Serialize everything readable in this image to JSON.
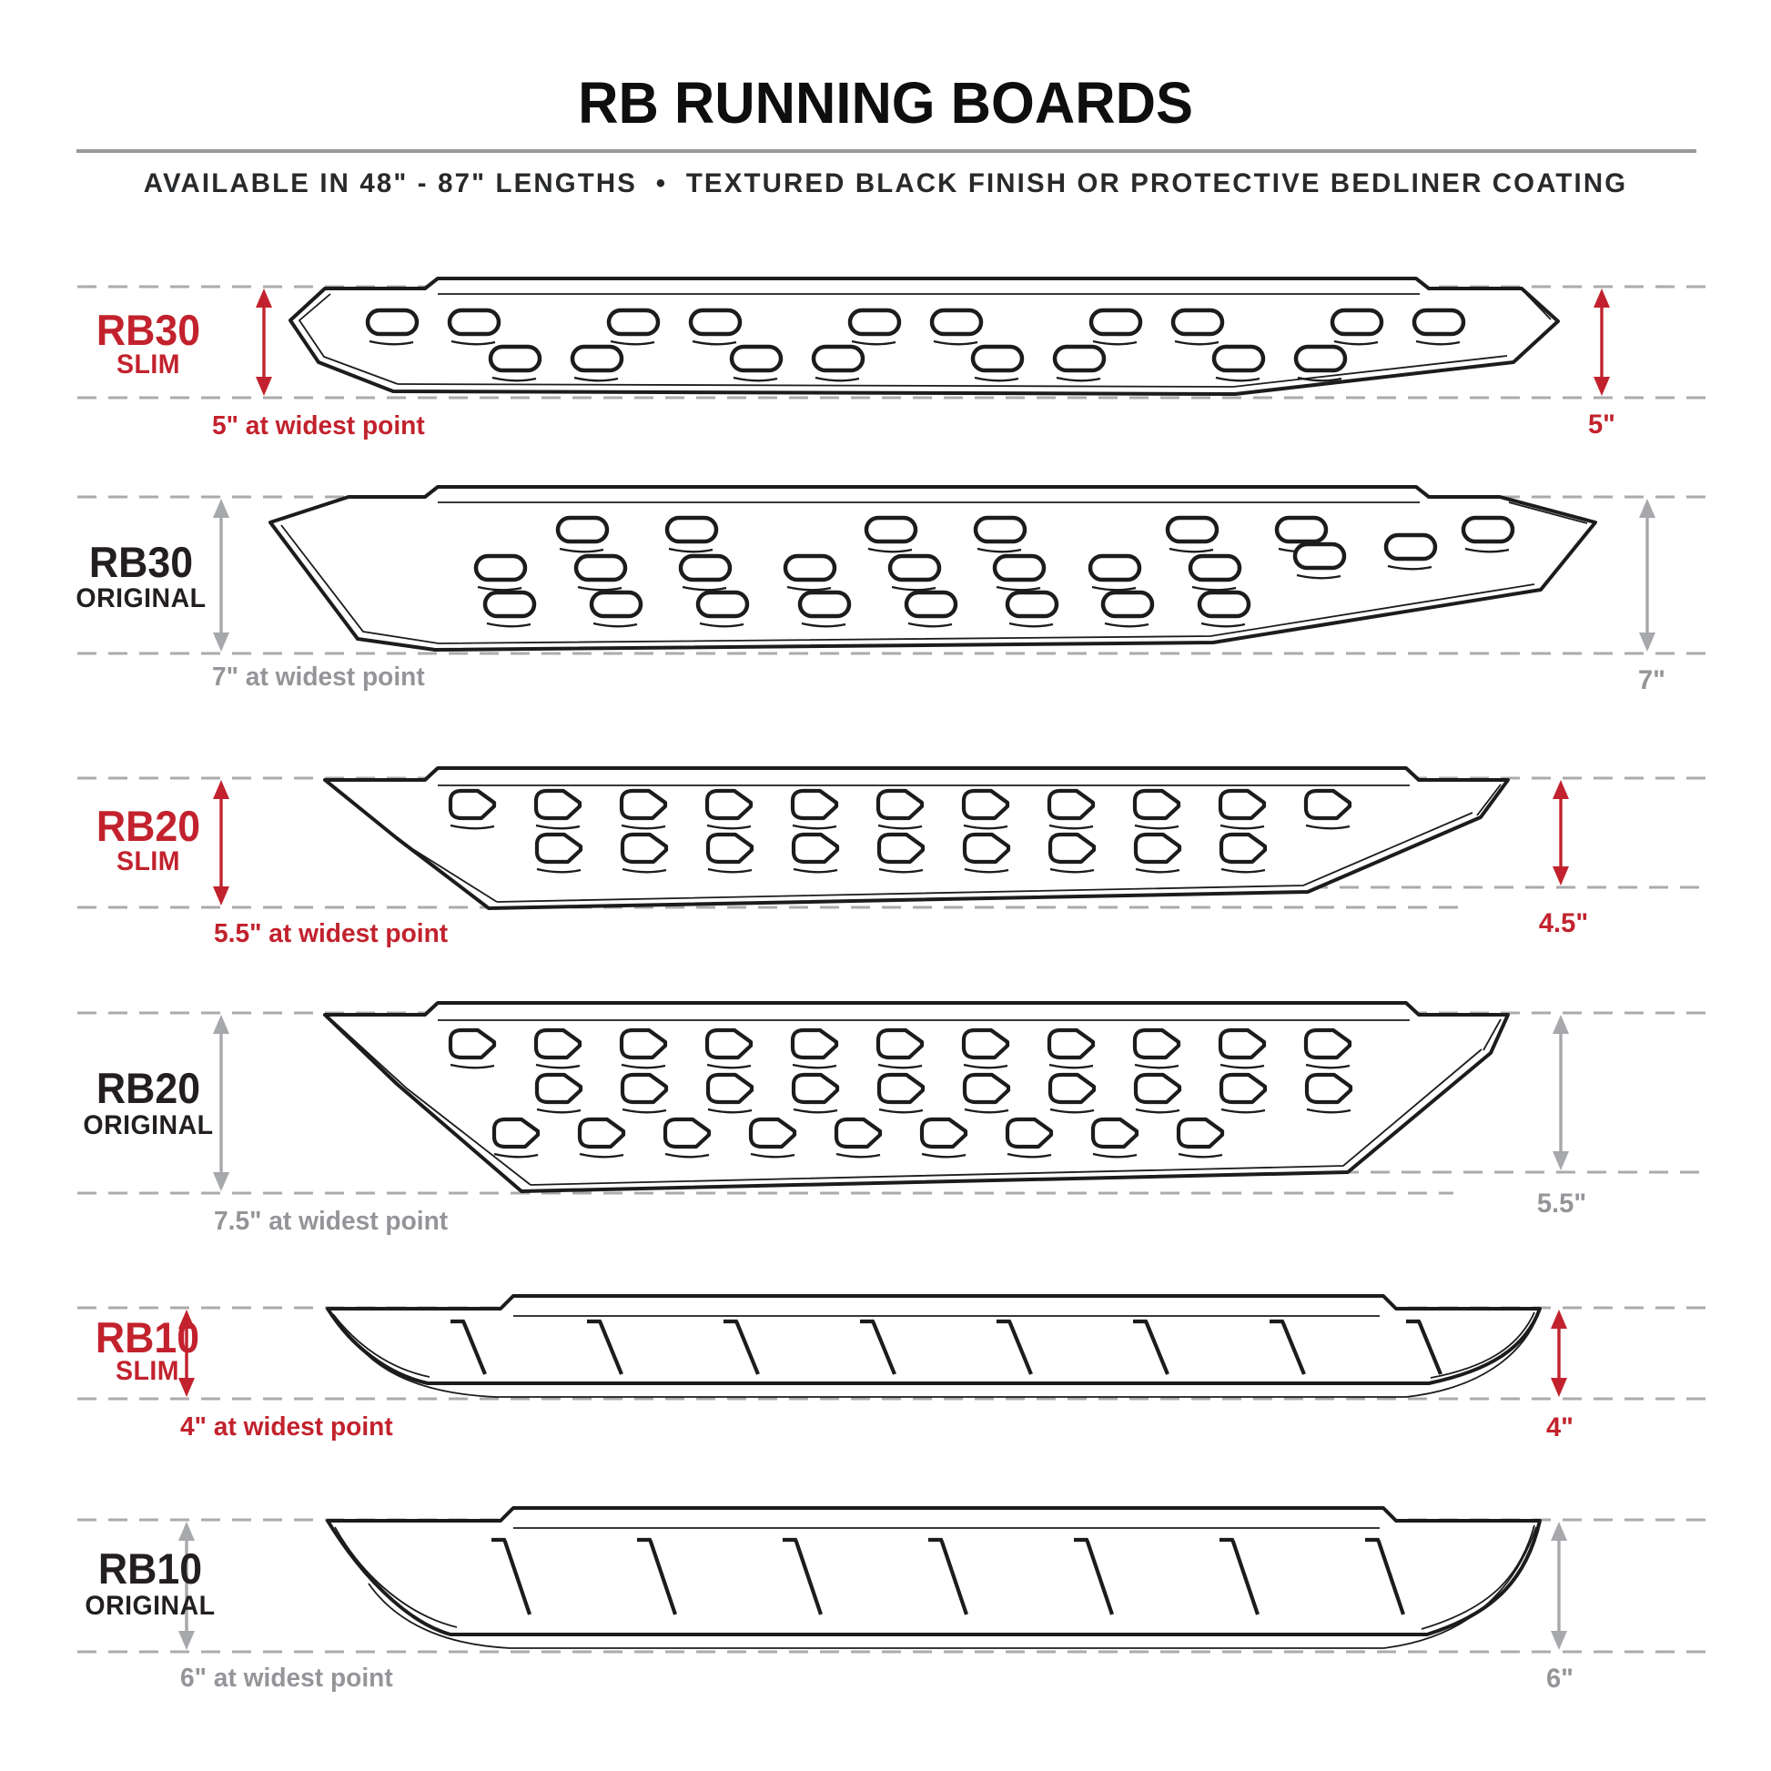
{
  "header": {
    "title": "RB RUNNING BOARDS",
    "subtitle": "AVAILABLE IN 48\" - 87\" LENGTHS  •  TEXTURED BLACK FINISH OR PROTECTIVE BEDLINER COATING"
  },
  "colors": {
    "accent_red": "#c2222d",
    "arrow_gray": "#a6a8ab",
    "text_gray": "#939598",
    "dash_gray": "#ababab",
    "line_black": "#1c1c1c"
  },
  "rows": [
    {
      "model": "RB30",
      "variant": "SLIM",
      "left_measure": "5\" at widest point",
      "right_measure": "5\"",
      "tone": "red"
    },
    {
      "model": "RB30",
      "variant": "ORIGINAL",
      "left_measure": "7\" at widest point",
      "right_measure": "7\"",
      "tone": "gray"
    },
    {
      "model": "RB20",
      "variant": "SLIM",
      "left_measure": "5.5\" at widest point",
      "right_measure": "4.5\"",
      "tone": "red"
    },
    {
      "model": "RB20",
      "variant": "ORIGINAL",
      "left_measure": "7.5\" at widest point",
      "right_measure": "5.5\"",
      "tone": "gray"
    },
    {
      "model": "RB10",
      "variant": "SLIM",
      "left_measure": "4\" at widest point",
      "right_measure": "4\"",
      "tone": "red"
    },
    {
      "model": "RB10",
      "variant": "ORIGINAL",
      "left_measure": "6\" at widest point",
      "right_measure": "6\"",
      "tone": "gray"
    }
  ]
}
